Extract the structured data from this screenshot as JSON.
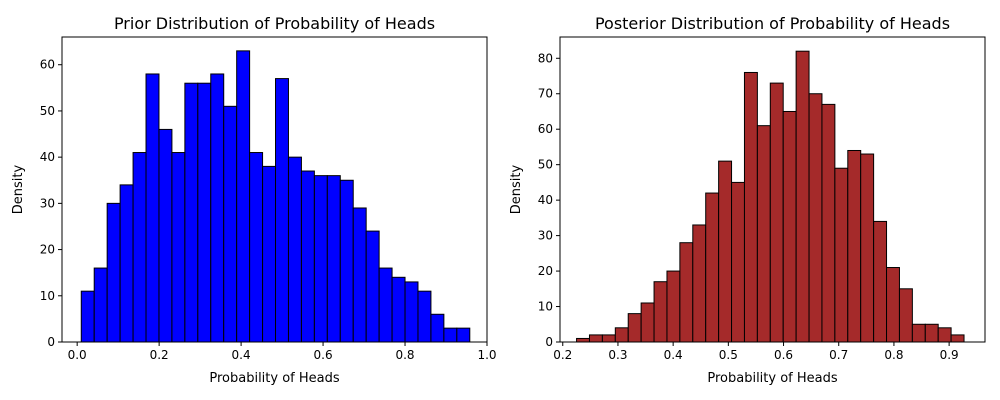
{
  "chart_data": [
    {
      "type": "bar",
      "title": "Prior Distribution of Probability of Heads",
      "xlabel": "Probability of Heads",
      "ylabel": "Density",
      "xlim": [
        -0.037,
        1.0
      ],
      "ylim": [
        0,
        66
      ],
      "xticks": [
        0.0,
        0.2,
        0.4,
        0.6,
        0.8,
        1.0
      ],
      "xtick_labels": [
        "0.0",
        "0.2",
        "0.4",
        "0.6",
        "0.8",
        "1.0"
      ],
      "yticks": [
        0,
        10,
        20,
        30,
        40,
        50,
        60
      ],
      "ytick_labels": [
        "0",
        "10",
        "20",
        "30",
        "40",
        "50",
        "60"
      ],
      "grid": false,
      "bar_color": "#0000ff",
      "edge_color": "#000000",
      "bin_start": 0.01,
      "bin_width": 0.0316,
      "values": [
        11,
        16,
        30,
        34,
        41,
        58,
        46,
        41,
        56,
        56,
        58,
        51,
        63,
        41,
        38,
        57,
        40,
        37,
        36,
        36,
        35,
        29,
        24,
        16,
        14,
        13,
        11,
        6,
        3,
        3
      ]
    },
    {
      "type": "bar",
      "title": "Posterior Distribution of Probability of Heads",
      "xlabel": "Probability of Heads",
      "ylabel": "Density",
      "xlim": [
        0.195,
        0.965
      ],
      "ylim": [
        0,
        86
      ],
      "xticks": [
        0.2,
        0.3,
        0.4,
        0.5,
        0.6,
        0.7,
        0.8,
        0.9
      ],
      "xtick_labels": [
        "0.2",
        "0.3",
        "0.4",
        "0.5",
        "0.6",
        "0.7",
        "0.8",
        "0.9"
      ],
      "yticks": [
        0,
        10,
        20,
        30,
        40,
        50,
        60,
        70,
        80
      ],
      "ytick_labels": [
        "0",
        "10",
        "20",
        "30",
        "40",
        "50",
        "60",
        "70",
        "80"
      ],
      "grid": false,
      "bar_color": "#a52a2a",
      "edge_color": "#000000",
      "bin_start": 0.225,
      "bin_width": 0.0234,
      "values": [
        1,
        2,
        2,
        4,
        8,
        11,
        17,
        20,
        28,
        33,
        42,
        51,
        45,
        76,
        61,
        73,
        65,
        82,
        70,
        67,
        49,
        54,
        53,
        34,
        21,
        15,
        5,
        5,
        4,
        2
      ]
    }
  ]
}
